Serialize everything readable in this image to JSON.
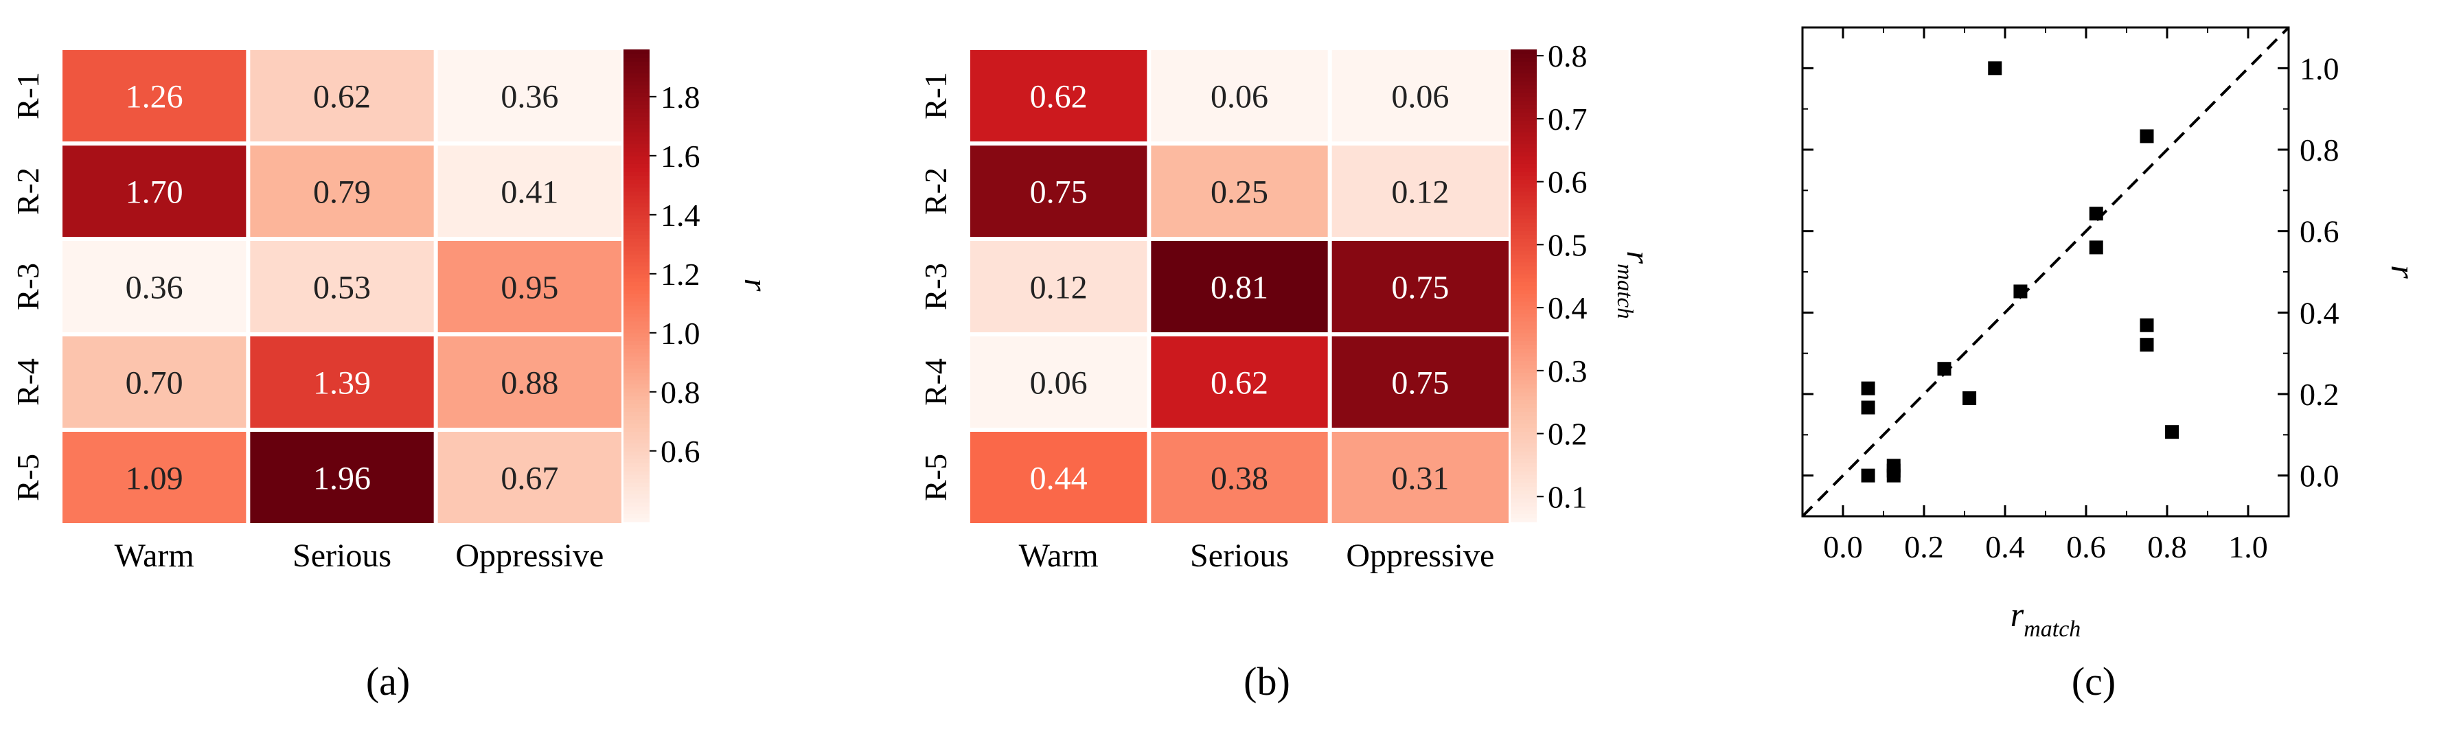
{
  "chart_data": [
    {
      "type": "heatmap",
      "panel_label": "(a)",
      "rows": [
        "R-1",
        "R-2",
        "R-3",
        "R-4",
        "R-5"
      ],
      "columns": [
        "Warm",
        "Serious",
        "Oppressive"
      ],
      "values": [
        [
          1.26,
          0.62,
          0.36
        ],
        [
          1.7,
          0.79,
          0.41
        ],
        [
          0.36,
          0.53,
          0.95
        ],
        [
          0.7,
          1.39,
          0.88
        ],
        [
          1.09,
          1.96,
          0.67
        ]
      ],
      "value_labels": [
        [
          "1.26",
          "0.62",
          "0.36"
        ],
        [
          "1.70",
          "0.79",
          "0.41"
        ],
        [
          "0.36",
          "0.53",
          "0.95"
        ],
        [
          "0.70",
          "1.39",
          "0.88"
        ],
        [
          "1.09",
          "1.96",
          "0.67"
        ]
      ],
      "colorbar": {
        "label": "r",
        "label_subscript": "",
        "range": [
          0.36,
          1.96
        ],
        "ticks": [
          0.6,
          0.8,
          1.0,
          1.2,
          1.4,
          1.6,
          1.8
        ],
        "tick_labels": [
          "0.6",
          "0.8",
          "1.0",
          "1.2",
          "1.4",
          "1.6",
          "1.8"
        ]
      },
      "colormap": [
        "#fff5f0",
        "#fcbba1",
        "#fb6a4a",
        "#cb181d",
        "#67000d"
      ]
    },
    {
      "type": "heatmap",
      "panel_label": "(b)",
      "rows": [
        "R-1",
        "R-2",
        "R-3",
        "R-4",
        "R-5"
      ],
      "columns": [
        "Warm",
        "Serious",
        "Oppressive"
      ],
      "values": [
        [
          0.62,
          0.06,
          0.06
        ],
        [
          0.75,
          0.25,
          0.12
        ],
        [
          0.12,
          0.81,
          0.75
        ],
        [
          0.06,
          0.62,
          0.75
        ],
        [
          0.44,
          0.38,
          0.31
        ]
      ],
      "value_labels": [
        [
          "0.62",
          "0.06",
          "0.06"
        ],
        [
          "0.75",
          "0.25",
          "0.12"
        ],
        [
          "0.12",
          "0.81",
          "0.75"
        ],
        [
          "0.06",
          "0.62",
          "0.75"
        ],
        [
          "0.44",
          "0.38",
          "0.31"
        ]
      ],
      "colorbar": {
        "label": "r",
        "label_subscript": "match",
        "range": [
          0.06,
          0.81
        ],
        "ticks": [
          0.1,
          0.2,
          0.3,
          0.4,
          0.5,
          0.6,
          0.7,
          0.8
        ],
        "tick_labels": [
          "0.1",
          "0.2",
          "0.3",
          "0.4",
          "0.5",
          "0.6",
          "0.7",
          "0.8"
        ]
      },
      "colormap": [
        "#fff5f0",
        "#fcbba1",
        "#fb6a4a",
        "#cb181d",
        "#67000d"
      ]
    },
    {
      "type": "scatter",
      "panel_label": "(c)",
      "xlabel": "r",
      "xlabel_subscript": "match",
      "ylabel": "r",
      "xlim": [
        -0.1,
        1.1
      ],
      "ylim": [
        -0.1,
        1.1
      ],
      "xticks": [
        0.0,
        0.2,
        0.4,
        0.6,
        0.8,
        1.0
      ],
      "xtick_labels": [
        "0.0",
        "0.2",
        "0.4",
        "0.6",
        "0.8",
        "1.0"
      ],
      "yticks": [
        0.0,
        0.2,
        0.4,
        0.6,
        0.8,
        1.0
      ],
      "ytick_labels": [
        "0.0",
        "0.2",
        "0.4",
        "0.6",
        "0.8",
        "1.0"
      ],
      "reference_line": "y = x",
      "points": [
        {
          "x": 0.062,
          "y": 0.0
        },
        {
          "x": 0.062,
          "y": 0.167
        },
        {
          "x": 0.062,
          "y": 0.214
        },
        {
          "x": 0.125,
          "y": 0.0
        },
        {
          "x": 0.125,
          "y": 0.012
        },
        {
          "x": 0.125,
          "y": 0.024
        },
        {
          "x": 0.25,
          "y": 0.262
        },
        {
          "x": 0.312,
          "y": 0.19
        },
        {
          "x": 0.375,
          "y": 1.0
        },
        {
          "x": 0.438,
          "y": 0.452
        },
        {
          "x": 0.625,
          "y": 0.56
        },
        {
          "x": 0.625,
          "y": 0.643
        },
        {
          "x": 0.75,
          "y": 0.321
        },
        {
          "x": 0.75,
          "y": 0.369
        },
        {
          "x": 0.75,
          "y": 0.833
        },
        {
          "x": 0.812,
          "y": 0.107
        }
      ]
    }
  ]
}
